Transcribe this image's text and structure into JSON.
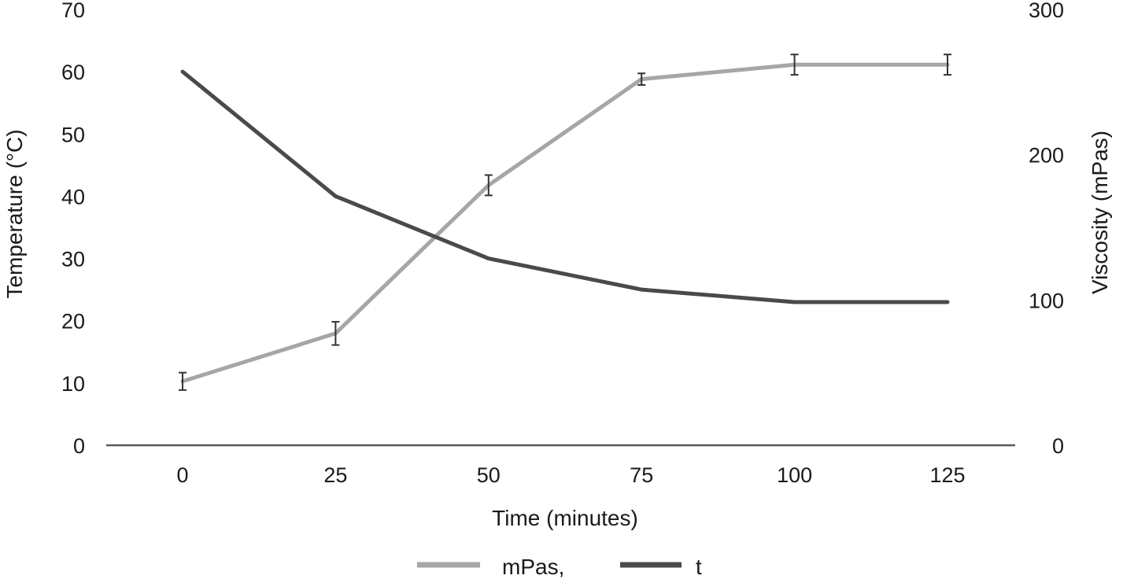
{
  "colors": {
    "viscosity": "#a6a6a6",
    "temperature": "#4a4a4a",
    "axis": "#595959",
    "error_bar": "#333333"
  },
  "chart_data": {
    "type": "line",
    "title": "",
    "xlabel": "Time (minutes)",
    "ylabel_left": "Temperature (°C)",
    "ylabel_right": "Viscosity (mPas)",
    "x": [
      0,
      25,
      50,
      75,
      100,
      125
    ],
    "x_tick_labels": [
      "0",
      "25",
      "50",
      "75",
      "100",
      "125"
    ],
    "y_left_range": [
      0,
      70
    ],
    "y_left_ticks": [
      "0",
      "10",
      "20",
      "30",
      "40",
      "50",
      "60",
      "70"
    ],
    "y_right_range": [
      0,
      300
    ],
    "y_right_ticks": [
      "0",
      "100",
      "200",
      "300"
    ],
    "grid": false,
    "legend_position": "bottom",
    "series": [
      {
        "name": "mPas,",
        "axis": "right",
        "color_key": "viscosity",
        "values": [
          44,
          77,
          179,
          252,
          262,
          262
        ],
        "error": [
          6,
          8,
          7,
          4,
          7,
          7
        ]
      },
      {
        "name": "t",
        "axis": "left",
        "color_key": "temperature",
        "values": [
          60,
          40,
          30,
          25,
          23,
          23
        ]
      }
    ]
  }
}
